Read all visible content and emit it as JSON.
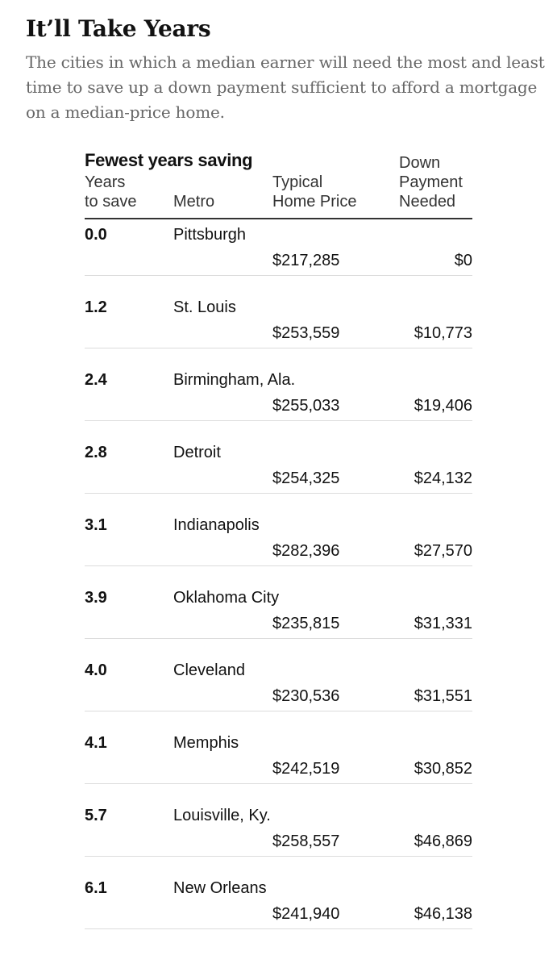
{
  "header": {
    "title": "It’ll Take Years",
    "subtitle": "The cities in which a median earner will need the most and least time to save up a down payment sufficient to afford a mortgage on a median-price home."
  },
  "chart_data": {
    "type": "table",
    "title": "Fewest years saving",
    "columns": {
      "years": [
        "Years",
        "to save"
      ],
      "metro": [
        "Metro"
      ],
      "price": [
        "Typical",
        "Home Price"
      ],
      "down": [
        "Down",
        "Payment",
        "Needed"
      ]
    },
    "rows": [
      {
        "years": "0.0",
        "metro": "Pittsburgh",
        "price": "$217,285",
        "down": "$0"
      },
      {
        "years": "1.2",
        "metro": "St. Louis",
        "price": "$253,559",
        "down": "$10,773"
      },
      {
        "years": "2.4",
        "metro": "Birmingham, Ala.",
        "price": "$255,033",
        "down": "$19,406"
      },
      {
        "years": "2.8",
        "metro": "Detroit",
        "price": "$254,325",
        "down": "$24,132"
      },
      {
        "years": "3.1",
        "metro": "Indianapolis",
        "price": "$282,396",
        "down": "$27,570"
      },
      {
        "years": "3.9",
        "metro": "Oklahoma City",
        "price": "$235,815",
        "down": "$31,331"
      },
      {
        "years": "4.0",
        "metro": "Cleveland",
        "price": "$230,536",
        "down": "$31,551"
      },
      {
        "years": "4.1",
        "metro": "Memphis",
        "price": "$242,519",
        "down": "$30,852"
      },
      {
        "years": "5.7",
        "metro": "Louisville, Ky.",
        "price": "$258,557",
        "down": "$46,869"
      },
      {
        "years": "6.1",
        "metro": "New Orleans",
        "price": "$241,940",
        "down": "$46,138"
      }
    ]
  }
}
